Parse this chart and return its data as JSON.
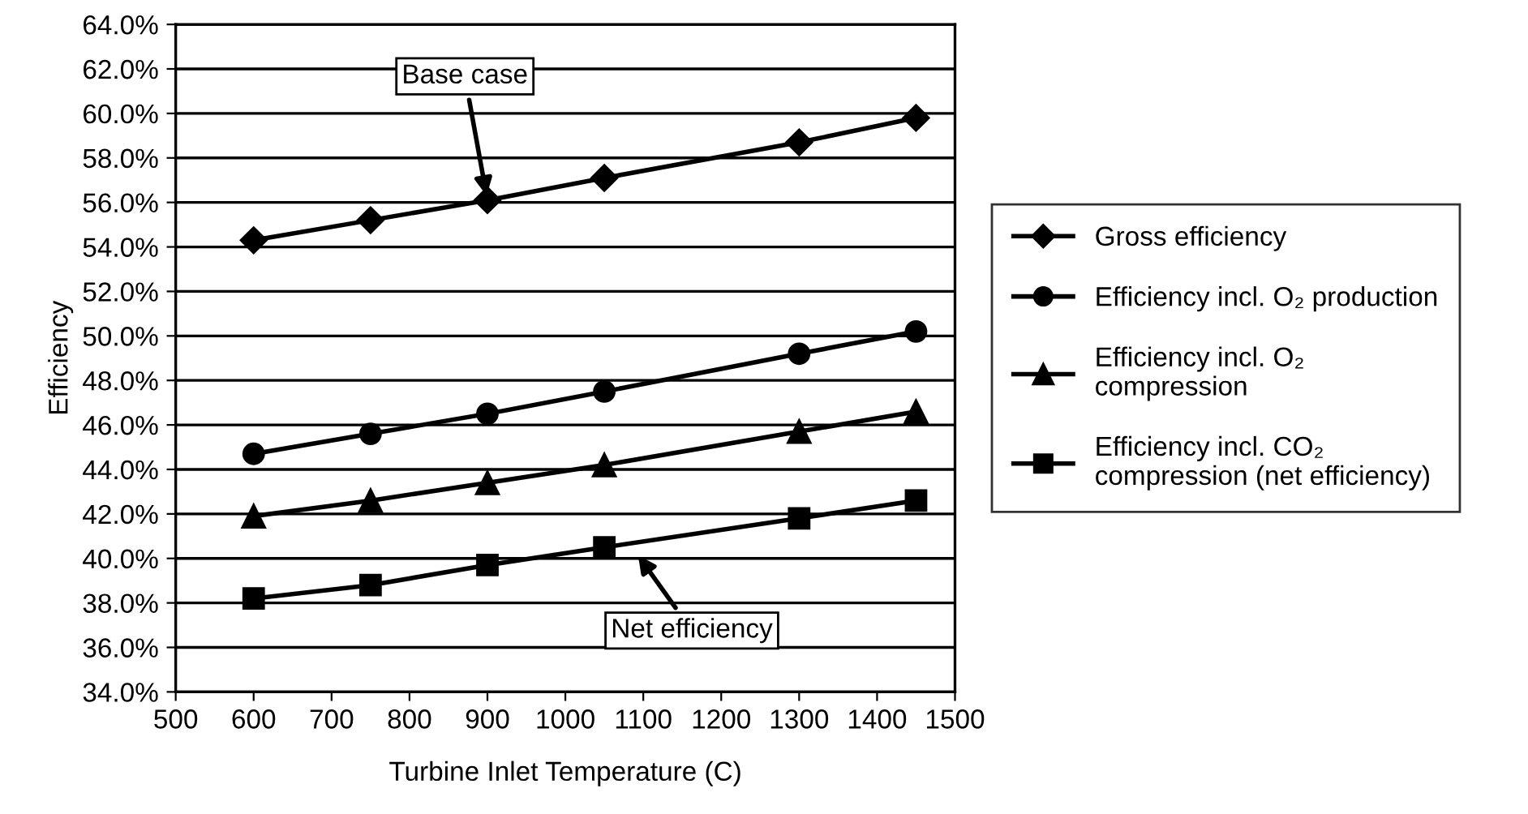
{
  "chart_data": {
    "type": "line",
    "xlabel": "Turbine Inlet Temperature (C)",
    "ylabel": "Efficiency",
    "x": [
      600,
      750,
      900,
      1050,
      1300,
      1450
    ],
    "xlim": [
      500,
      1500
    ],
    "xticks": [
      500,
      600,
      700,
      800,
      900,
      1000,
      1100,
      1200,
      1300,
      1400,
      1500
    ],
    "ylim": [
      34,
      64
    ],
    "yticks": [
      {
        "value": 34,
        "label": "34.0%"
      },
      {
        "value": 36,
        "label": "36.0%"
      },
      {
        "value": 38,
        "label": "38.0%"
      },
      {
        "value": 40,
        "label": "40.0%"
      },
      {
        "value": 42,
        "label": "42.0%"
      },
      {
        "value": 44,
        "label": "44.0%"
      },
      {
        "value": 46,
        "label": "46.0%"
      },
      {
        "value": 48,
        "label": "48.0%"
      },
      {
        "value": 50,
        "label": "50.0%"
      },
      {
        "value": 52,
        "label": "52.0%"
      },
      {
        "value": 54,
        "label": "54.0%"
      },
      {
        "value": 56,
        "label": "56.0%"
      },
      {
        "value": 58,
        "label": "58.0%"
      },
      {
        "value": 60,
        "label": "60.0%"
      },
      {
        "value": 62,
        "label": "62.0%"
      },
      {
        "value": 64,
        "label": "64.0%"
      }
    ],
    "grid": "y",
    "legend": "right",
    "line_style": "solid",
    "series": [
      {
        "name": "Gross efficiency",
        "color": "#000000",
        "marker": "diamond",
        "values": [
          54.3,
          55.2,
          56.1,
          57.1,
          58.7,
          59.8
        ]
      },
      {
        "name": "Efficiency incl. O₂ production",
        "color": "#000000",
        "marker": "circle",
        "values": [
          44.7,
          45.6,
          46.5,
          47.5,
          49.2,
          50.2
        ]
      },
      {
        "name": "Efficiency incl. O₂\ncompression",
        "color": "#000000",
        "marker": "triangle",
        "values": [
          41.9,
          42.6,
          43.4,
          44.2,
          45.7,
          46.6
        ]
      },
      {
        "name": "Efficiency incl. CO₂\ncompression (net efficiency)",
        "color": "#000000",
        "marker": "square",
        "values": [
          38.2,
          38.8,
          39.7,
          40.5,
          41.8,
          42.6
        ]
      }
    ],
    "annotations": [
      {
        "text": "Base case",
        "x": 900,
        "y": 56.1
      },
      {
        "text": "Net efficiency",
        "x": 1090,
        "y": 40.3
      }
    ]
  }
}
